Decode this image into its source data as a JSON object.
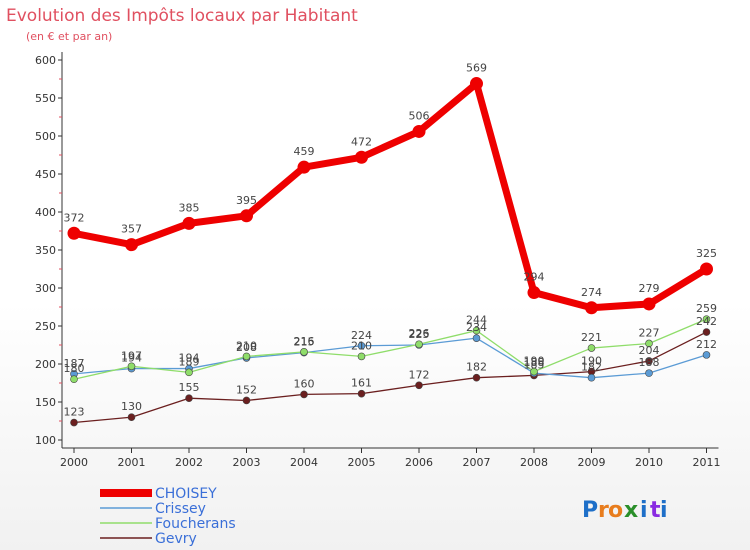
{
  "chart_data": {
    "type": "line",
    "title": "Evolution des Impôts locaux par Habitant",
    "subtitle": "(en € et par an)",
    "xlabel": "",
    "ylabel": "",
    "ylim": [
      100,
      600
    ],
    "yticks": [
      100,
      150,
      200,
      250,
      300,
      350,
      400,
      450,
      500,
      550,
      600
    ],
    "categories": [
      "2000",
      "2001",
      "2002",
      "2003",
      "2004",
      "2005",
      "2006",
      "2007",
      "2008",
      "2009",
      "2010",
      "2011"
    ],
    "grid": false,
    "legend_position": "bottom-left",
    "series": [
      {
        "name": "CHOISEY",
        "color": "#ee0000",
        "values": [
          372,
          357,
          385,
          395,
          459,
          472,
          506,
          569,
          294,
          274,
          279,
          325
        ]
      },
      {
        "name": "Crissey",
        "color": "#5b9bd5",
        "values": [
          187,
          194,
          194,
          208,
          215,
          224,
          225,
          234,
          188,
          182,
          188,
          212
        ]
      },
      {
        "name": "Foucherans",
        "color": "#8fdd6a",
        "values": [
          180,
          197,
          189,
          210,
          216,
          210,
          226,
          244,
          190,
          221,
          227,
          259
        ]
      },
      {
        "name": "Gevry",
        "color": "#6b1f1f",
        "values": [
          123,
          130,
          155,
          152,
          160,
          161,
          172,
          182,
          185,
          190,
          204,
          242
        ]
      }
    ]
  },
  "logo": {
    "text": "Proxiti",
    "letters": [
      "P",
      "r",
      "o",
      "x",
      "i",
      "t",
      "i"
    ]
  }
}
